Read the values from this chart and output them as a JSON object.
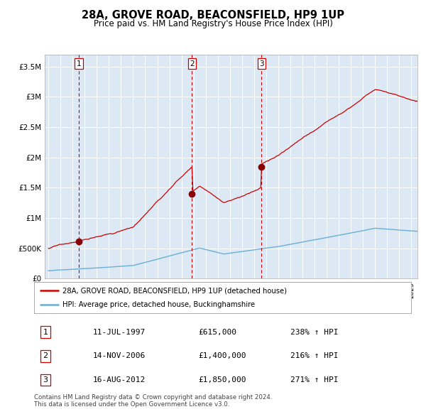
{
  "title": "28A, GROVE ROAD, BEACONSFIELD, HP9 1UP",
  "subtitle": "Price paid vs. HM Land Registry's House Price Index (HPI)",
  "bg_color": "#dce9f5",
  "grid_color": "#ffffff",
  "hpi_line_color": "#6aaed6",
  "price_line_color": "#cc0000",
  "ylim": [
    0,
    3700000
  ],
  "yticks": [
    0,
    500000,
    1000000,
    1500000,
    2000000,
    2500000,
    3000000,
    3500000
  ],
  "ytick_labels": [
    "£0",
    "£500K",
    "£1M",
    "£1.5M",
    "£2M",
    "£2.5M",
    "£3M",
    "£3.5M"
  ],
  "sale_dates": [
    1997.53,
    2006.87,
    2012.62
  ],
  "sale_prices": [
    615000,
    1400000,
    1850000
  ],
  "sale_numbers": [
    "1",
    "2",
    "3"
  ],
  "vline_color": "#cc0000",
  "dot_color": "#880000",
  "legend_entries": [
    "28A, GROVE ROAD, BEACONSFIELD, HP9 1UP (detached house)",
    "HPI: Average price, detached house, Buckinghamshire"
  ],
  "table_rows": [
    [
      "1",
      "11-JUL-1997",
      "£615,000",
      "238% ↑ HPI"
    ],
    [
      "2",
      "14-NOV-2006",
      "£1,400,000",
      "216% ↑ HPI"
    ],
    [
      "3",
      "16-AUG-2012",
      "£1,850,000",
      "271% ↑ HPI"
    ]
  ],
  "footer": "Contains HM Land Registry data © Crown copyright and database right 2024.\nThis data is licensed under the Open Government Licence v3.0.",
  "xlim_start": 1994.7,
  "xlim_end": 2025.5
}
